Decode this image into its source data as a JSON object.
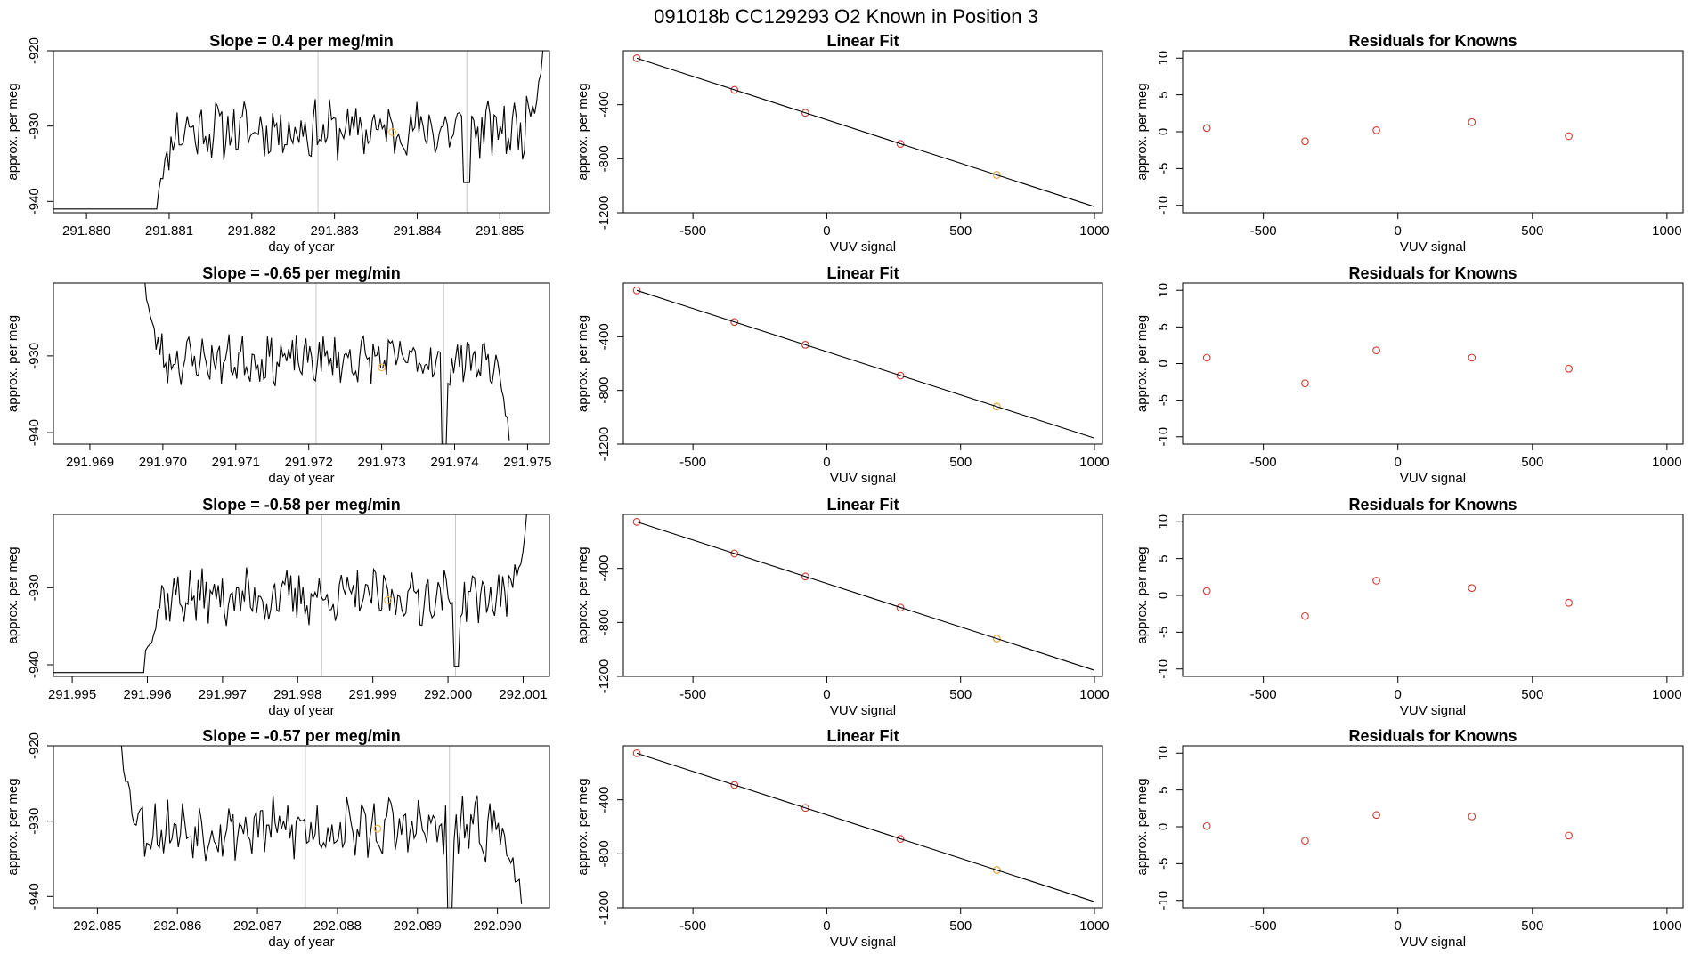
{
  "suptitle": "091018b      CC129293   O2 Known in Position  3",
  "chart_data": [
    {
      "type": "line",
      "panel": "timeseries",
      "row": 1,
      "title": "Slope =  0.4  per meg/min",
      "xlabel": "day of year",
      "ylabel": "approx. per meg",
      "xlim": [
        291.8796,
        291.8856
      ],
      "ylim": [
        -941.5,
        -920
      ],
      "xticks": [
        "291.880",
        "291.881",
        "291.882",
        "291.883",
        "291.884",
        "291.885"
      ],
      "yticks": [
        {
          "v": -940,
          "label": "-940"
        },
        {
          "v": -930,
          "label": "-930"
        },
        {
          "v": -920,
          "label": "-920"
        }
      ],
      "vlines": [
        291.8828,
        291.8846
      ],
      "series": [
        {
          "kind": "line",
          "x_start": 291.88085,
          "x_end": 291.88552,
          "start_y": -941,
          "end_y": -920,
          "mean": -930.5,
          "amp": 3.2,
          "spike_x": 291.8846,
          "spike_depth": 7,
          "seed": 11,
          "color": "#000000"
        }
      ],
      "marker": {
        "x": 291.8837,
        "y": -930.8,
        "color": "#f5b53d"
      }
    },
    {
      "type": "line",
      "panel": "timeseries",
      "row": 2,
      "title": "Slope =  -0.65  per meg/min",
      "xlabel": "day of year",
      "ylabel": "approx. per meg",
      "xlim": [
        291.9685,
        291.9753
      ],
      "ylim": [
        -941.5,
        -920.5
      ],
      "xticks": [
        "291.969",
        "291.970",
        "291.971",
        "291.972",
        "291.973",
        "291.974",
        "291.975"
      ],
      "yticks": [
        {
          "v": -940,
          "label": "-940"
        },
        {
          "v": -930,
          "label": "-930"
        }
      ],
      "vlines": [
        291.9721,
        291.97385
      ],
      "series": [
        {
          "kind": "line",
          "x_start": 291.96975,
          "x_end": 291.97475,
          "start_y": -920,
          "end_y": -941,
          "mean": -930.5,
          "amp": 2.6,
          "spike_x": 291.97385,
          "spike_depth": 12,
          "seed": 23,
          "color": "#000000"
        }
      ],
      "marker": {
        "x": 291.973,
        "y": -931.5,
        "color": "#f5b53d"
      }
    },
    {
      "type": "line",
      "panel": "timeseries",
      "row": 3,
      "title": "Slope =  -0.58  per meg/min",
      "xlabel": "day of year",
      "ylabel": "approx. per meg",
      "xlim": [
        291.99475,
        292.00135
      ],
      "ylim": [
        -941.5,
        -920.5
      ],
      "xticks": [
        "291.995",
        "291.996",
        "291.997",
        "291.998",
        "291.999",
        "292.000",
        "292.001"
      ],
      "yticks": [
        {
          "v": -940,
          "label": "-940"
        },
        {
          "v": -930,
          "label": "-930"
        }
      ],
      "vlines": [
        291.99832,
        292.0001
      ],
      "series": [
        {
          "kind": "line",
          "x_start": 291.99595,
          "x_end": 292.00105,
          "start_y": -941,
          "end_y": -920,
          "mean": -931.2,
          "amp": 3.0,
          "spike_x": 292.0001,
          "spike_depth": 9,
          "seed": 37,
          "color": "#000000"
        }
      ],
      "marker": {
        "x": 291.9992,
        "y": -931.6,
        "color": "#f5b53d"
      }
    },
    {
      "type": "line",
      "panel": "timeseries",
      "row": 4,
      "title": "Slope =  -0.57  per meg/min",
      "xlabel": "day of year",
      "ylabel": "approx. per meg",
      "xlim": [
        292.08445,
        292.09065
      ],
      "ylim": [
        -941.5,
        -920
      ],
      "xticks": [
        "292.085",
        "292.086",
        "292.087",
        "292.088",
        "292.089",
        "292.090"
      ],
      "yticks": [
        {
          "v": -940,
          "label": "-940"
        },
        {
          "v": -930,
          "label": "-930"
        },
        {
          "v": -920,
          "label": "-920"
        }
      ],
      "vlines": [
        292.0876,
        292.0894
      ],
      "series": [
        {
          "kind": "line",
          "x_start": 292.0853,
          "x_end": 292.0903,
          "start_y": -920,
          "end_y": -941,
          "mean": -931,
          "amp": 3.4,
          "spike_x": 292.0894,
          "spike_depth": 11,
          "seed": 53,
          "color": "#000000"
        }
      ],
      "marker": {
        "x": 292.0885,
        "y": -931,
        "color": "#f5b53d"
      }
    },
    {
      "type": "scatter",
      "panel": "fit",
      "row": 1,
      "title": "Linear Fit",
      "xlabel": "VUV signal",
      "ylabel": "approx. per meg",
      "xlim": [
        -760,
        1030
      ],
      "ylim": [
        -1200,
        0
      ],
      "xticks": [
        {
          "v": -500,
          "label": "-500"
        },
        {
          "v": 0,
          "label": "0"
        },
        {
          "v": 500,
          "label": "500"
        },
        {
          "v": 1000,
          "label": "1000"
        }
      ],
      "yticks": [
        {
          "v": -400,
          "label": "-400"
        },
        {
          "v": -800,
          "label": "-800"
        },
        {
          "v": -1200,
          "label": "-1200"
        }
      ],
      "series": [
        {
          "kind": "points",
          "x": [
            -710,
            -345,
            -80,
            275,
            635
          ],
          "y": [
            -55,
            -290,
            -460,
            -690,
            -920
          ],
          "colors": [
            "#cd3a2f",
            "#cd3a2f",
            "#cd3a2f",
            "#cd3a2f",
            "#e39a2c"
          ]
        },
        {
          "kind": "fitline",
          "x": [
            -710,
            1000
          ],
          "y": [
            -55,
            -1155
          ],
          "color": "#000000"
        }
      ]
    },
    {
      "type": "scatter",
      "panel": "fit",
      "row": 2,
      "title": "Linear Fit",
      "xlabel": "VUV signal",
      "ylabel": "approx. per meg",
      "xlim": [
        -760,
        1030
      ],
      "ylim": [
        -1200,
        0
      ],
      "xticks": [
        {
          "v": -500,
          "label": "-500"
        },
        {
          "v": 0,
          "label": "0"
        },
        {
          "v": 500,
          "label": "500"
        },
        {
          "v": 1000,
          "label": "1000"
        }
      ],
      "yticks": [
        {
          "v": -400,
          "label": "-400"
        },
        {
          "v": -800,
          "label": "-800"
        },
        {
          "v": -1200,
          "label": "-1200"
        }
      ],
      "series": [
        {
          "kind": "points",
          "x": [
            -710,
            -345,
            -80,
            275,
            635
          ],
          "y": [
            -55,
            -290,
            -460,
            -690,
            -920
          ],
          "colors": [
            "#cd3a2f",
            "#cd3a2f",
            "#cd3a2f",
            "#cd3a2f",
            "#e39a2c"
          ]
        },
        {
          "kind": "fitline",
          "x": [
            -710,
            1000
          ],
          "y": [
            -55,
            -1155
          ],
          "color": "#000000"
        }
      ]
    },
    {
      "type": "scatter",
      "panel": "fit",
      "row": 3,
      "title": "Linear Fit",
      "xlabel": "VUV signal",
      "ylabel": "approx. per meg",
      "xlim": [
        -760,
        1030
      ],
      "ylim": [
        -1200,
        0
      ],
      "xticks": [
        {
          "v": -500,
          "label": "-500"
        },
        {
          "v": 0,
          "label": "0"
        },
        {
          "v": 500,
          "label": "500"
        },
        {
          "v": 1000,
          "label": "1000"
        }
      ],
      "yticks": [
        {
          "v": -400,
          "label": "-400"
        },
        {
          "v": -800,
          "label": "-800"
        },
        {
          "v": -1200,
          "label": "-1200"
        }
      ],
      "series": [
        {
          "kind": "points",
          "x": [
            -710,
            -345,
            -80,
            275,
            635
          ],
          "y": [
            -55,
            -290,
            -460,
            -690,
            -920
          ],
          "colors": [
            "#cd3a2f",
            "#cd3a2f",
            "#cd3a2f",
            "#cd3a2f",
            "#e39a2c"
          ]
        },
        {
          "kind": "fitline",
          "x": [
            -710,
            1000
          ],
          "y": [
            -55,
            -1155
          ],
          "color": "#000000"
        }
      ]
    },
    {
      "type": "scatter",
      "panel": "fit",
      "row": 4,
      "title": "Linear Fit",
      "xlabel": "VUV signal",
      "ylabel": "approx. per meg",
      "xlim": [
        -760,
        1030
      ],
      "ylim": [
        -1200,
        0
      ],
      "xticks": [
        {
          "v": -500,
          "label": "-500"
        },
        {
          "v": 0,
          "label": "0"
        },
        {
          "v": 500,
          "label": "500"
        },
        {
          "v": 1000,
          "label": "1000"
        }
      ],
      "yticks": [
        {
          "v": -400,
          "label": "-400"
        },
        {
          "v": -800,
          "label": "-800"
        },
        {
          "v": -1200,
          "label": "-1200"
        }
      ],
      "series": [
        {
          "kind": "points",
          "x": [
            -710,
            -345,
            -80,
            275,
            635
          ],
          "y": [
            -55,
            -290,
            -460,
            -690,
            -920
          ],
          "colors": [
            "#cd3a2f",
            "#cd3a2f",
            "#cd3a2f",
            "#cd3a2f",
            "#e39a2c"
          ]
        },
        {
          "kind": "fitline",
          "x": [
            -710,
            1000
          ],
          "y": [
            -55,
            -1155
          ],
          "color": "#000000"
        }
      ]
    },
    {
      "type": "scatter",
      "panel": "residuals",
      "row": 1,
      "title": "Residuals for Knowns",
      "xlabel": "VUV signal",
      "ylabel": "approx. per meg",
      "xlim": [
        -800,
        1060
      ],
      "ylim": [
        -11,
        11
      ],
      "xticks": [
        {
          "v": -500,
          "label": "-500"
        },
        {
          "v": 0,
          "label": "0"
        },
        {
          "v": 500,
          "label": "500"
        },
        {
          "v": 1000,
          "label": "1000"
        }
      ],
      "yticks": [
        {
          "v": -10,
          "label": "-10"
        },
        {
          "v": -5,
          "label": "-5"
        },
        {
          "v": 0,
          "label": "0"
        },
        {
          "v": 5,
          "label": "5"
        },
        {
          "v": 10,
          "label": "10"
        }
      ],
      "series": [
        {
          "kind": "points",
          "x": [
            -710,
            -345,
            -80,
            275,
            635
          ],
          "y": [
            0.5,
            -1.3,
            0.2,
            1.3,
            -0.6
          ],
          "colors": [
            "#cd3a2f",
            "#cd3a2f",
            "#cd3a2f",
            "#cd3a2f",
            "#cd3a2f"
          ]
        }
      ]
    },
    {
      "type": "scatter",
      "panel": "residuals",
      "row": 2,
      "title": "Residuals for Knowns",
      "xlabel": "VUV signal",
      "ylabel": "approx. per meg",
      "xlim": [
        -800,
        1060
      ],
      "ylim": [
        -11,
        11
      ],
      "xticks": [
        {
          "v": -500,
          "label": "-500"
        },
        {
          "v": 0,
          "label": "0"
        },
        {
          "v": 500,
          "label": "500"
        },
        {
          "v": 1000,
          "label": "1000"
        }
      ],
      "yticks": [
        {
          "v": -10,
          "label": "-10"
        },
        {
          "v": -5,
          "label": "-5"
        },
        {
          "v": 0,
          "label": "0"
        },
        {
          "v": 5,
          "label": "5"
        },
        {
          "v": 10,
          "label": "10"
        }
      ],
      "series": [
        {
          "kind": "points",
          "x": [
            -710,
            -345,
            -80,
            275,
            635
          ],
          "y": [
            0.8,
            -2.7,
            1.8,
            0.8,
            -0.7
          ],
          "colors": [
            "#cd3a2f",
            "#cd3a2f",
            "#cd3a2f",
            "#cd3a2f",
            "#cd3a2f"
          ]
        }
      ]
    },
    {
      "type": "scatter",
      "panel": "residuals",
      "row": 3,
      "title": "Residuals for Knowns",
      "xlabel": "VUV signal",
      "ylabel": "approx. per meg",
      "xlim": [
        -800,
        1060
      ],
      "ylim": [
        -11,
        11
      ],
      "xticks": [
        {
          "v": -500,
          "label": "-500"
        },
        {
          "v": 0,
          "label": "0"
        },
        {
          "v": 500,
          "label": "500"
        },
        {
          "v": 1000,
          "label": "1000"
        }
      ],
      "yticks": [
        {
          "v": -10,
          "label": "-10"
        },
        {
          "v": -5,
          "label": "-5"
        },
        {
          "v": 0,
          "label": "0"
        },
        {
          "v": 5,
          "label": "5"
        },
        {
          "v": 10,
          "label": "10"
        }
      ],
      "series": [
        {
          "kind": "points",
          "x": [
            -710,
            -345,
            -80,
            275,
            635
          ],
          "y": [
            0.6,
            -2.8,
            2.0,
            1.0,
            -1.0
          ],
          "colors": [
            "#cd3a2f",
            "#cd3a2f",
            "#cd3a2f",
            "#cd3a2f",
            "#cd3a2f"
          ]
        }
      ]
    },
    {
      "type": "scatter",
      "panel": "residuals",
      "row": 4,
      "title": "Residuals for Knowns",
      "xlabel": "VUV signal",
      "ylabel": "approx. per meg",
      "xlim": [
        -800,
        1060
      ],
      "ylim": [
        -11,
        11
      ],
      "xticks": [
        {
          "v": -500,
          "label": "-500"
        },
        {
          "v": 0,
          "label": "0"
        },
        {
          "v": 500,
          "label": "500"
        },
        {
          "v": 1000,
          "label": "1000"
        }
      ],
      "yticks": [
        {
          "v": -10,
          "label": "-10"
        },
        {
          "v": -5,
          "label": "-5"
        },
        {
          "v": 0,
          "label": "0"
        },
        {
          "v": 5,
          "label": "5"
        },
        {
          "v": 10,
          "label": "10"
        }
      ],
      "series": [
        {
          "kind": "points",
          "x": [
            -710,
            -345,
            -80,
            275,
            635
          ],
          "y": [
            0.1,
            -1.9,
            1.6,
            1.4,
            -1.2
          ],
          "colors": [
            "#cd3a2f",
            "#cd3a2f",
            "#cd3a2f",
            "#cd3a2f",
            "#cd3a2f"
          ]
        }
      ]
    }
  ]
}
